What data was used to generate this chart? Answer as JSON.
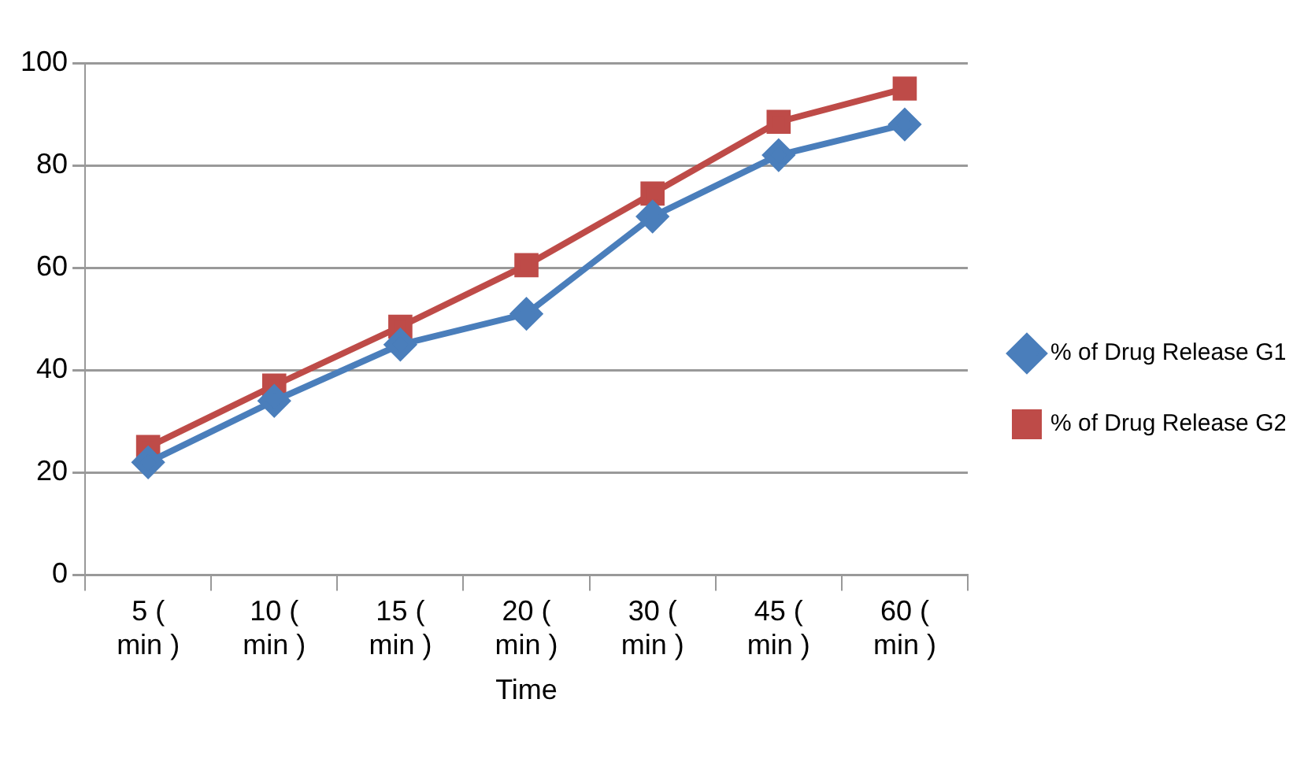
{
  "chart_data": {
    "type": "line",
    "xlabel": "Time",
    "categories": [
      "5 ( min )",
      "10 ( min )",
      "15 ( min )",
      "20 ( min )",
      "30 ( min )",
      "45 ( min )",
      "60 ( min )"
    ],
    "series": [
      {
        "name": "% of Drug Release G1",
        "color": "#4a7ebb",
        "marker": "diamond",
        "values": [
          22,
          34,
          45,
          51,
          70,
          82,
          88
        ]
      },
      {
        "name": "% of Drug Release G2",
        "color": "#be4b48",
        "marker": "square",
        "values": [
          25,
          37,
          48.5,
          60.5,
          74.5,
          88.5,
          95
        ]
      }
    ],
    "ylim": [
      0,
      100
    ],
    "yticks": [
      0,
      20,
      40,
      60,
      80,
      100
    ],
    "grid": "y",
    "legend": "right"
  }
}
